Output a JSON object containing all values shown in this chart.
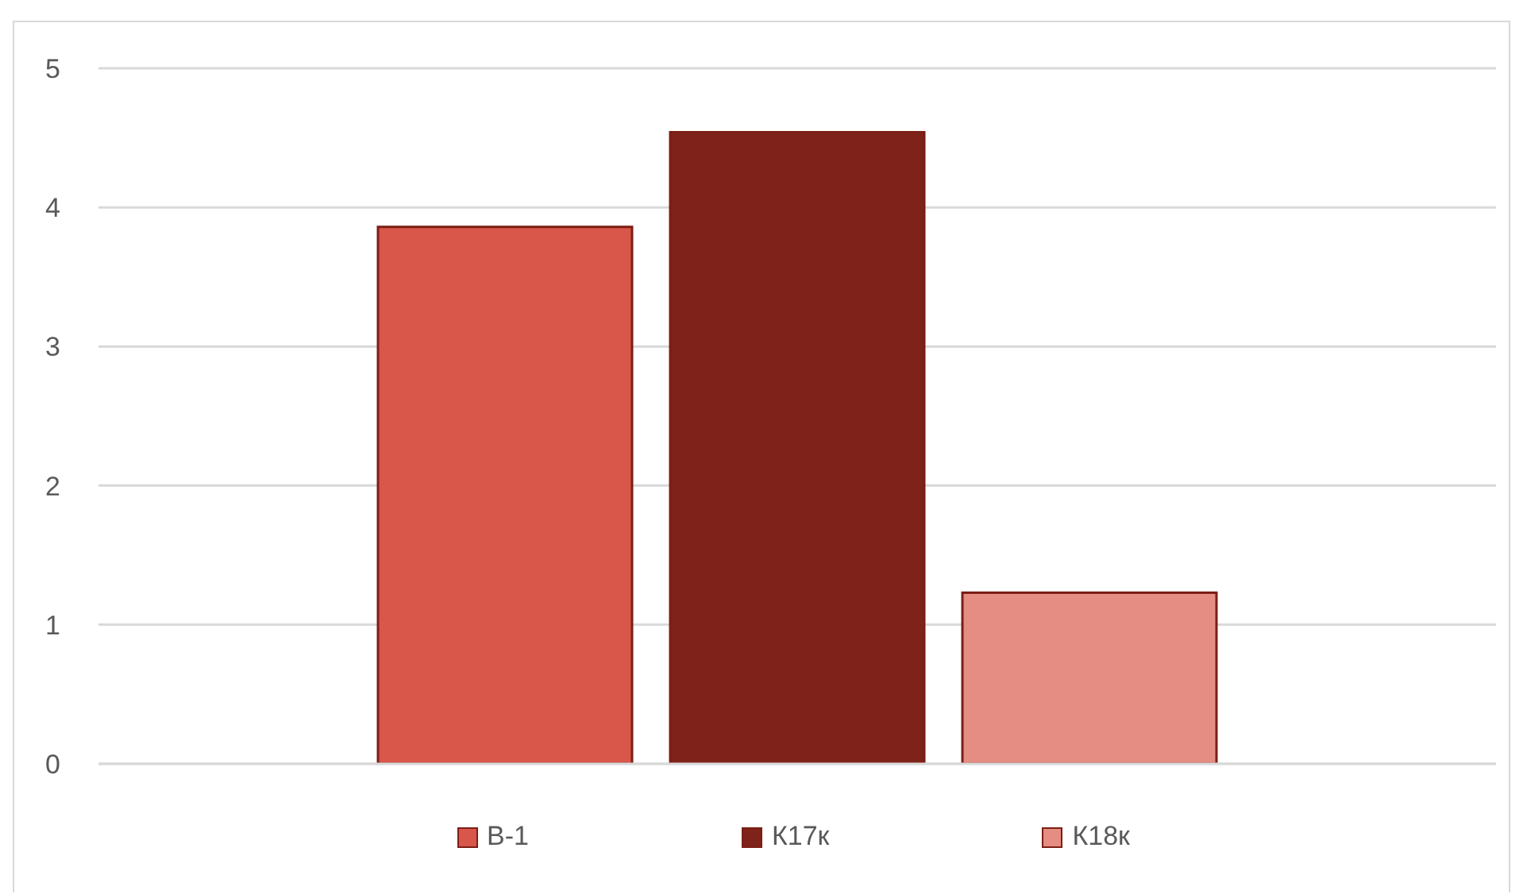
{
  "chart_data": {
    "type": "bar",
    "categories": [
      null
    ],
    "series": [
      {
        "name": "В-1",
        "color": "#d9564a",
        "values": [
          3.86
        ]
      },
      {
        "name": "К17к",
        "color": "#7f231a",
        "values": [
          4.54
        ]
      },
      {
        "name": "К18к",
        "color": "#e68d83",
        "values": [
          1.23
        ]
      }
    ],
    "ylim": [
      0,
      5
    ],
    "yticks": [
      0,
      1,
      2,
      3,
      4,
      5
    ],
    "grid": "y",
    "legend": "bottom",
    "tick_labels": "y"
  }
}
